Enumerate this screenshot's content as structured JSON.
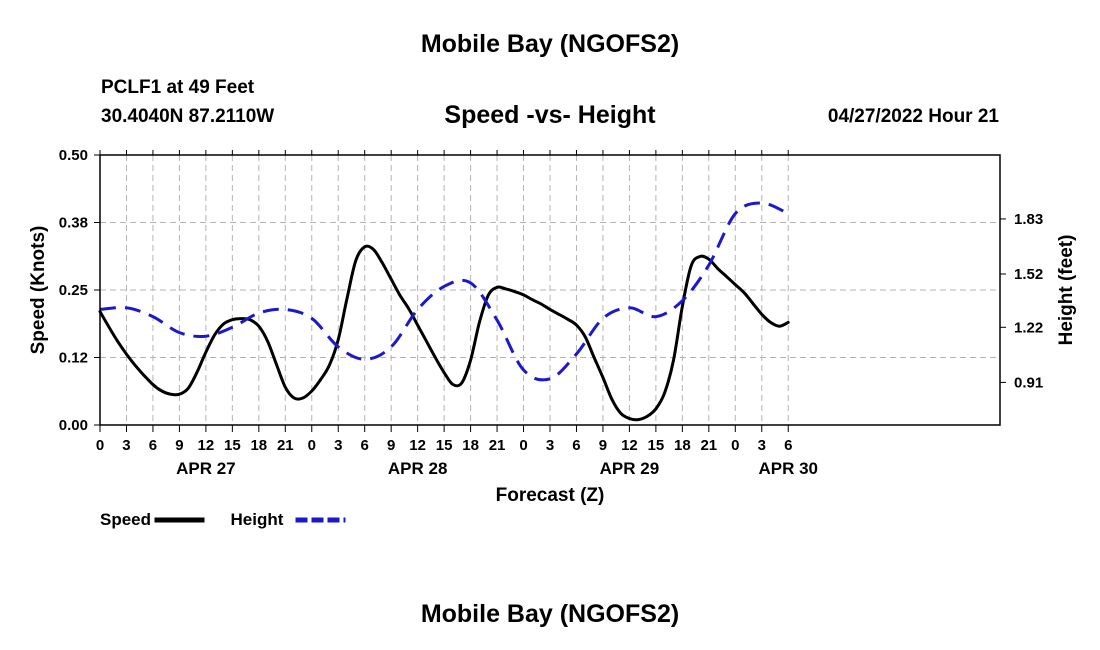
{
  "page": {
    "title_top": "Mobile Bay (NGOFS2)",
    "title_bottom": "Mobile Bay (NGOFS2)",
    "station": "PCLF1 at 49 Feet",
    "coords": "30.4040N  87.2110W",
    "subtitle": "Speed -vs- Height",
    "datetime": "04/27/2022 Hour 21"
  },
  "chart_data": {
    "type": "line",
    "title": "Speed -vs- Height",
    "xlabel": "Forecast (Z)",
    "ylabel": "Speed (Knots)",
    "y2label": "Height (feet)",
    "x_unit": "hours from APR 27 00Z",
    "xlim": [
      0,
      102
    ],
    "ylim": [
      0,
      0.5
    ],
    "y2lim": [
      0.67,
      2.19
    ],
    "xticks": [
      {
        "x": 0,
        "label": "0"
      },
      {
        "x": 3,
        "label": "3"
      },
      {
        "x": 6,
        "label": "6"
      },
      {
        "x": 9,
        "label": "9"
      },
      {
        "x": 12,
        "label": "12"
      },
      {
        "x": 15,
        "label": "15"
      },
      {
        "x": 18,
        "label": "18"
      },
      {
        "x": 21,
        "label": "21"
      },
      {
        "x": 24,
        "label": "0"
      },
      {
        "x": 27,
        "label": "3"
      },
      {
        "x": 30,
        "label": "6"
      },
      {
        "x": 33,
        "label": "9"
      },
      {
        "x": 36,
        "label": "12"
      },
      {
        "x": 39,
        "label": "15"
      },
      {
        "x": 42,
        "label": "18"
      },
      {
        "x": 45,
        "label": "21"
      },
      {
        "x": 48,
        "label": "0"
      },
      {
        "x": 51,
        "label": "3"
      },
      {
        "x": 54,
        "label": "6"
      },
      {
        "x": 57,
        "label": "9"
      },
      {
        "x": 60,
        "label": "12"
      },
      {
        "x": 63,
        "label": "15"
      },
      {
        "x": 66,
        "label": "18"
      },
      {
        "x": 69,
        "label": "21"
      },
      {
        "x": 72,
        "label": "0"
      },
      {
        "x": 75,
        "label": "3"
      },
      {
        "x": 78,
        "label": "6"
      }
    ],
    "date_labels": [
      {
        "x": 12,
        "label": "APR 27"
      },
      {
        "x": 36,
        "label": "APR 28"
      },
      {
        "x": 60,
        "label": "APR 29"
      },
      {
        "x": 78,
        "label": "APR 30"
      }
    ],
    "yticks": [
      {
        "value": 0.0,
        "label": "0.00"
      },
      {
        "value": 0.125,
        "label": "0.12"
      },
      {
        "value": 0.25,
        "label": "0.25"
      },
      {
        "value": 0.375,
        "label": "0.38"
      },
      {
        "value": 0.5,
        "label": "0.50"
      }
    ],
    "y2ticks": [
      {
        "value": 0.91,
        "label": "0.91"
      },
      {
        "value": 1.22,
        "label": "1.22"
      },
      {
        "value": 1.52,
        "label": "1.52"
      },
      {
        "value": 1.83,
        "label": "1.83"
      }
    ],
    "grid": true,
    "legend_position": "bottom-left",
    "series": [
      {
        "name": "Speed",
        "axis": "left",
        "color": "#000000",
        "style": "solid",
        "x": [
          0,
          2,
          4,
          6,
          7,
          8,
          9,
          10,
          11,
          12,
          13,
          14,
          15,
          16,
          17,
          18,
          19,
          20,
          21,
          22,
          23,
          24,
          25,
          26,
          27,
          28,
          29,
          30,
          31,
          32,
          33,
          34,
          35,
          36,
          37,
          38,
          39,
          40,
          41,
          42,
          43,
          44,
          45,
          46,
          47,
          48,
          49,
          50,
          51,
          52,
          53,
          54,
          55,
          56,
          57,
          58,
          59,
          60,
          61,
          62,
          63,
          64,
          65,
          66,
          67,
          68,
          69,
          70,
          71,
          72,
          73,
          74,
          75,
          76,
          77,
          78
        ],
        "values": [
          0.21,
          0.155,
          0.11,
          0.075,
          0.063,
          0.057,
          0.057,
          0.068,
          0.098,
          0.135,
          0.167,
          0.187,
          0.195,
          0.197,
          0.195,
          0.183,
          0.155,
          0.112,
          0.07,
          0.05,
          0.05,
          0.063,
          0.084,
          0.111,
          0.158,
          0.235,
          0.305,
          0.33,
          0.325,
          0.3,
          0.27,
          0.24,
          0.215,
          0.185,
          0.155,
          0.125,
          0.097,
          0.075,
          0.078,
          0.12,
          0.19,
          0.24,
          0.255,
          0.252,
          0.247,
          0.241,
          0.232,
          0.224,
          0.214,
          0.205,
          0.196,
          0.185,
          0.163,
          0.125,
          0.088,
          0.048,
          0.022,
          0.012,
          0.01,
          0.016,
          0.03,
          0.06,
          0.12,
          0.22,
          0.295,
          0.312,
          0.307,
          0.29,
          0.275,
          0.26,
          0.245,
          0.225,
          0.205,
          0.19,
          0.183,
          0.19
        ]
      },
      {
        "name": "Height",
        "axis": "right",
        "color": "#1a1acc",
        "style": "dashed",
        "x": [
          0,
          3,
          6,
          9,
          12,
          15,
          18,
          21,
          24,
          27,
          30,
          33,
          36,
          39,
          42,
          45,
          48,
          51,
          54,
          57,
          60,
          63,
          66,
          69,
          72,
          75,
          78
        ],
        "values": [
          1.32,
          1.33,
          1.28,
          1.19,
          1.17,
          1.22,
          1.3,
          1.32,
          1.27,
          1.11,
          1.04,
          1.11,
          1.32,
          1.45,
          1.47,
          1.26,
          0.98,
          0.93,
          1.07,
          1.27,
          1.33,
          1.28,
          1.37,
          1.57,
          1.86,
          1.92,
          1.86
        ]
      }
    ],
    "legend": [
      {
        "label": "Speed",
        "color": "#000000",
        "style": "solid"
      },
      {
        "label": "Height",
        "color": "#1a1acc",
        "style": "dashed"
      }
    ]
  }
}
